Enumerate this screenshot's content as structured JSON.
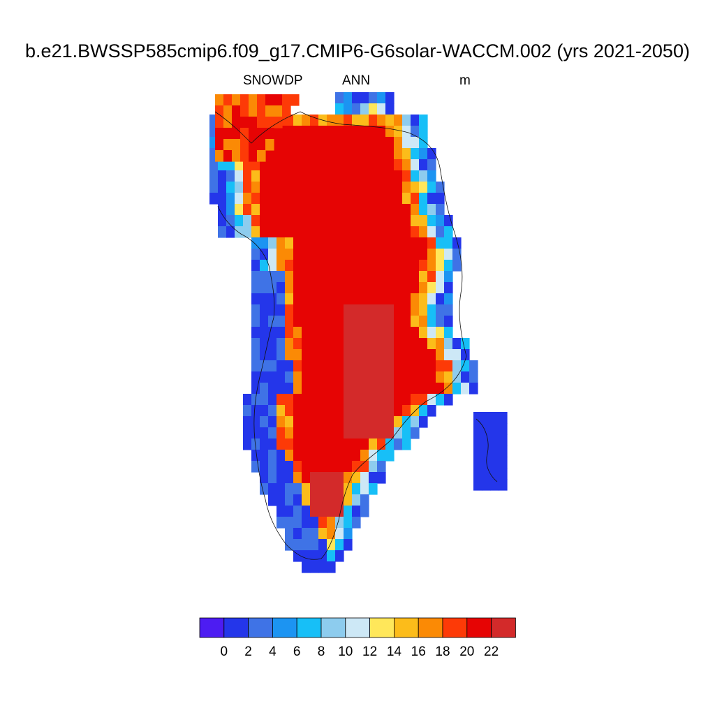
{
  "figure": {
    "title": "b.e21.BWSSP585cmip6.f09_g17.CMIP6-G6solar-WACCM.002 (yrs 2021-2050)",
    "variable": "SNOWDP",
    "season": "ANN",
    "units": "m"
  },
  "colorbar": {
    "colors": [
      "#4d1cf2",
      "#2436ea",
      "#3f73e6",
      "#1c94f2",
      "#17bff7",
      "#8dccee",
      "#cde8f6",
      "#ffe75a",
      "#fcbc1a",
      "#fb8a05",
      "#fd3a07",
      "#e60404",
      "#d32a2a"
    ],
    "labels": [
      "0",
      "2",
      "4",
      "6",
      "8",
      "10",
      "12",
      "14",
      "16",
      "18",
      "20",
      "22"
    ]
  },
  "chart_data": {
    "type": "heatmap",
    "title": "b.e21.BWSSP585cmip6.f09_g17.CMIP6-G6solar-WACCM.002 (yrs 2021-2050)",
    "variable": "SNOWDP",
    "units": "m",
    "season": "ANN",
    "color_levels": [
      0,
      2,
      4,
      6,
      8,
      10,
      12,
      14,
      16,
      18,
      20,
      22
    ],
    "region": "Greenland",
    "description_values": {
      "interior_max_category": ">22",
      "interior_dominant_category": "20-22",
      "coastal_range": "0-12"
    }
  }
}
